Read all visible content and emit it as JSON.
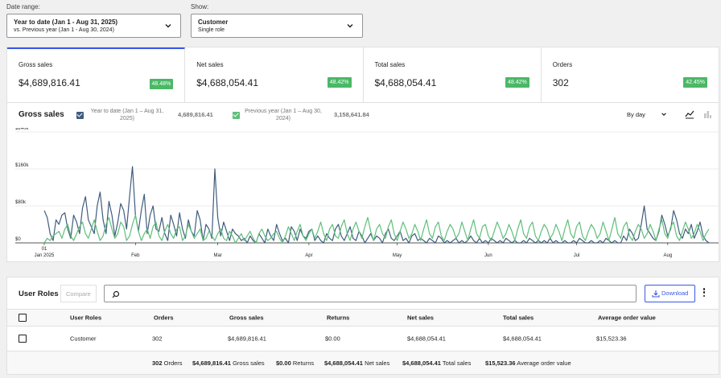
{
  "filters": {
    "date_label": "Date range:",
    "date_primary": "Year to date (Jan 1 - Aug 31, 2025)",
    "date_secondary": "vs. Previous year (Jan 1 - Aug 30, 2024)",
    "show_label": "Show:",
    "show_primary": "Customer",
    "show_secondary": "Single role"
  },
  "tiles": [
    {
      "label": "Gross sales",
      "value": "$4,689,816.41",
      "delta": "48.48%"
    },
    {
      "label": "Net sales",
      "value": "$4,688,054.41",
      "delta": "48.42%"
    },
    {
      "label": "Total sales",
      "value": "$4,688,054.41",
      "delta": "48.42%"
    },
    {
      "label": "Orders",
      "value": "302",
      "delta": "42.45%"
    }
  ],
  "chart_header": {
    "title": "Gross sales",
    "legend_current": "Year to date (Jan 1 – Aug 31, 2025)",
    "legend_current_value": "4,689,816.41",
    "legend_previous": "Previous year (Jan 1 – Aug 30, 2024)",
    "legend_previous_value": "3,158,641.84",
    "interval": "By day"
  },
  "colors": {
    "accent": "#3858e9",
    "current": "#3f5d7e",
    "previous": "#5fbf7a",
    "badge": "#4ab866"
  },
  "chart_data": {
    "type": "line",
    "title": "Gross sales",
    "y_ticks": [
      "$240k",
      "$160k",
      "$80k",
      "$0"
    ],
    "ylim": [
      0,
      240000
    ],
    "x_ticks": [
      {
        "day": 0,
        "label": "01"
      },
      {
        "day": 0,
        "label": "Jan 2025"
      },
      {
        "day": 31,
        "label": "Feb"
      },
      {
        "day": 59,
        "label": "Mar"
      },
      {
        "day": 90,
        "label": "Apr"
      },
      {
        "day": 120,
        "label": "May"
      },
      {
        "day": 151,
        "label": "Jun"
      },
      {
        "day": 181,
        "label": "Jul"
      },
      {
        "day": 212,
        "label": "Aug"
      }
    ],
    "grid": true,
    "series": [
      {
        "name": "Year to date (Jan 1 – Aug 31, 2025)",
        "color": "#3f5d7e",
        "values": [
          70000,
          55000,
          20000,
          5000,
          50000,
          40000,
          60000,
          65000,
          30000,
          10000,
          60000,
          45000,
          20000,
          75000,
          100000,
          50000,
          35000,
          20000,
          80000,
          110000,
          50000,
          20000,
          90000,
          60000,
          15000,
          45000,
          85000,
          70000,
          30000,
          100000,
          165000,
          60000,
          25000,
          70000,
          105000,
          20000,
          60000,
          80000,
          30000,
          25000,
          55000,
          20000,
          5000,
          60000,
          40000,
          15000,
          65000,
          30000,
          10000,
          50000,
          25000,
          15000,
          70000,
          50000,
          5000,
          40000,
          30000,
          10000,
          160000,
          55000,
          15000,
          45000,
          25000,
          5000,
          30000,
          20000,
          15000,
          5000,
          10000,
          0,
          15000,
          5000,
          0,
          20000,
          10000,
          0,
          30000,
          15000,
          5000,
          40000,
          20000,
          5000,
          10000,
          0,
          35000,
          25000,
          5000,
          30000,
          15000,
          10000,
          25000,
          30000,
          5000,
          15000,
          5000,
          0,
          20000,
          10000,
          5000,
          30000,
          40000,
          15000,
          5000,
          20000,
          35000,
          10000,
          5000,
          25000,
          15000,
          0,
          10000,
          20000,
          5000,
          15000,
          10000,
          0,
          20000,
          30000,
          10000,
          5000,
          15000,
          25000,
          5000,
          10000,
          0,
          15000,
          20000,
          5000,
          10000,
          5000,
          0,
          10000,
          5000,
          0,
          15000,
          10000,
          0,
          5000,
          0,
          5000,
          10000,
          0,
          5000,
          0,
          5000,
          15000,
          5000,
          0,
          10000,
          0,
          5000,
          0,
          10000,
          5000,
          0,
          5000,
          0,
          10000,
          5000,
          0,
          5000,
          0,
          0,
          5000,
          0,
          10000,
          5000,
          0,
          5000,
          0,
          5000,
          0,
          10000,
          0,
          5000,
          0,
          0,
          5000,
          0,
          0,
          5000,
          0,
          10000,
          5000,
          0,
          0,
          5000,
          0,
          0,
          5000,
          0,
          10000,
          5000,
          0,
          5000,
          0,
          0,
          15000,
          5000,
          30000,
          20000,
          5000,
          10000,
          40000,
          80000,
          30000,
          20000,
          10000,
          5000,
          25000,
          60000,
          40000,
          15000,
          30000,
          70000,
          50000,
          20000,
          10000,
          30000,
          20000,
          40000,
          10000,
          25000,
          45000,
          15000,
          5000,
          0
        ]
      },
      {
        "name": "Previous year (Jan 1 – Aug 30, 2024)",
        "color": "#5fbf7a",
        "values": [
          0,
          10000,
          5000,
          15000,
          20000,
          25000,
          10000,
          30000,
          40000,
          15000,
          5000,
          20000,
          35000,
          45000,
          20000,
          10000,
          30000,
          50000,
          25000,
          5000,
          15000,
          40000,
          55000,
          30000,
          10000,
          20000,
          45000,
          35000,
          5000,
          15000,
          40000,
          60000,
          25000,
          5000,
          20000,
          30000,
          10000,
          35000,
          45000,
          15000,
          5000,
          25000,
          40000,
          20000,
          10000,
          30000,
          35000,
          5000,
          15000,
          40000,
          25000,
          10000,
          20000,
          30000,
          5000,
          10000,
          25000,
          15000,
          5000,
          20000,
          30000,
          10000,
          5000,
          25000,
          15000,
          0,
          10000,
          20000,
          5000,
          15000,
          25000,
          10000,
          0,
          20000,
          30000,
          15000,
          5000,
          10000,
          20000,
          25000,
          10000,
          0,
          15000,
          35000,
          20000,
          5000,
          25000,
          40000,
          15000,
          5000,
          20000,
          30000,
          10000,
          25000,
          45000,
          20000,
          5000,
          30000,
          40000,
          15000,
          10000,
          35000,
          50000,
          20000,
          5000,
          30000,
          45000,
          25000,
          10000,
          35000,
          55000,
          25000,
          5000,
          30000,
          40000,
          20000,
          10000,
          35000,
          50000,
          20000,
          5000,
          25000,
          45000,
          30000,
          10000,
          20000,
          40000,
          25000,
          5000,
          30000,
          50000,
          20000,
          10000,
          35000,
          45000,
          15000,
          5000,
          25000,
          40000,
          30000,
          10000,
          20000,
          45000,
          25000,
          5000,
          30000,
          50000,
          20000,
          10000,
          35000,
          40000,
          15000,
          5000,
          25000,
          45000,
          30000,
          10000,
          20000,
          40000,
          25000,
          5000,
          30000,
          50000,
          20000,
          10000,
          35000,
          45000,
          15000,
          5000,
          25000,
          40000,
          30000,
          10000,
          20000,
          40000,
          25000,
          5000,
          30000,
          50000,
          20000,
          10000,
          35000,
          45000,
          15000,
          5000,
          25000,
          40000,
          30000,
          10000,
          20000,
          45000,
          25000,
          5000,
          30000,
          55000,
          20000,
          10000,
          35000,
          45000,
          15000,
          5000,
          25000,
          40000,
          30000,
          10000,
          20000,
          40000,
          25000,
          5000,
          30000,
          50000,
          20000,
          10000,
          35000,
          45000,
          15000,
          5000,
          25000,
          45000,
          30000,
          10000,
          20000,
          40000,
          25000,
          5000,
          20000,
          30000
        ]
      }
    ]
  },
  "table": {
    "title": "User Roles",
    "compare": "Compare",
    "download": "Download",
    "columns": [
      "User Roles",
      "Orders",
      "Gross sales",
      "Returns",
      "Net sales",
      "Total sales",
      "Average order value"
    ],
    "rows": [
      [
        "Customer",
        "302",
        "$4,689,816.41",
        "$0.00",
        "$4,688,054.41",
        "$4,688,054.41",
        "$15,523.36"
      ]
    ],
    "footer": [
      {
        "value": "302",
        "label": "Orders"
      },
      {
        "value": "$4,689,816.41",
        "label": "Gross sales"
      },
      {
        "value": "$0.00",
        "label": "Returns"
      },
      {
        "value": "$4,688,054.41",
        "label": "Net sales"
      },
      {
        "value": "$4,688,054.41",
        "label": "Total sales"
      },
      {
        "value": "$15,523.36",
        "label": "Average order value"
      }
    ]
  }
}
